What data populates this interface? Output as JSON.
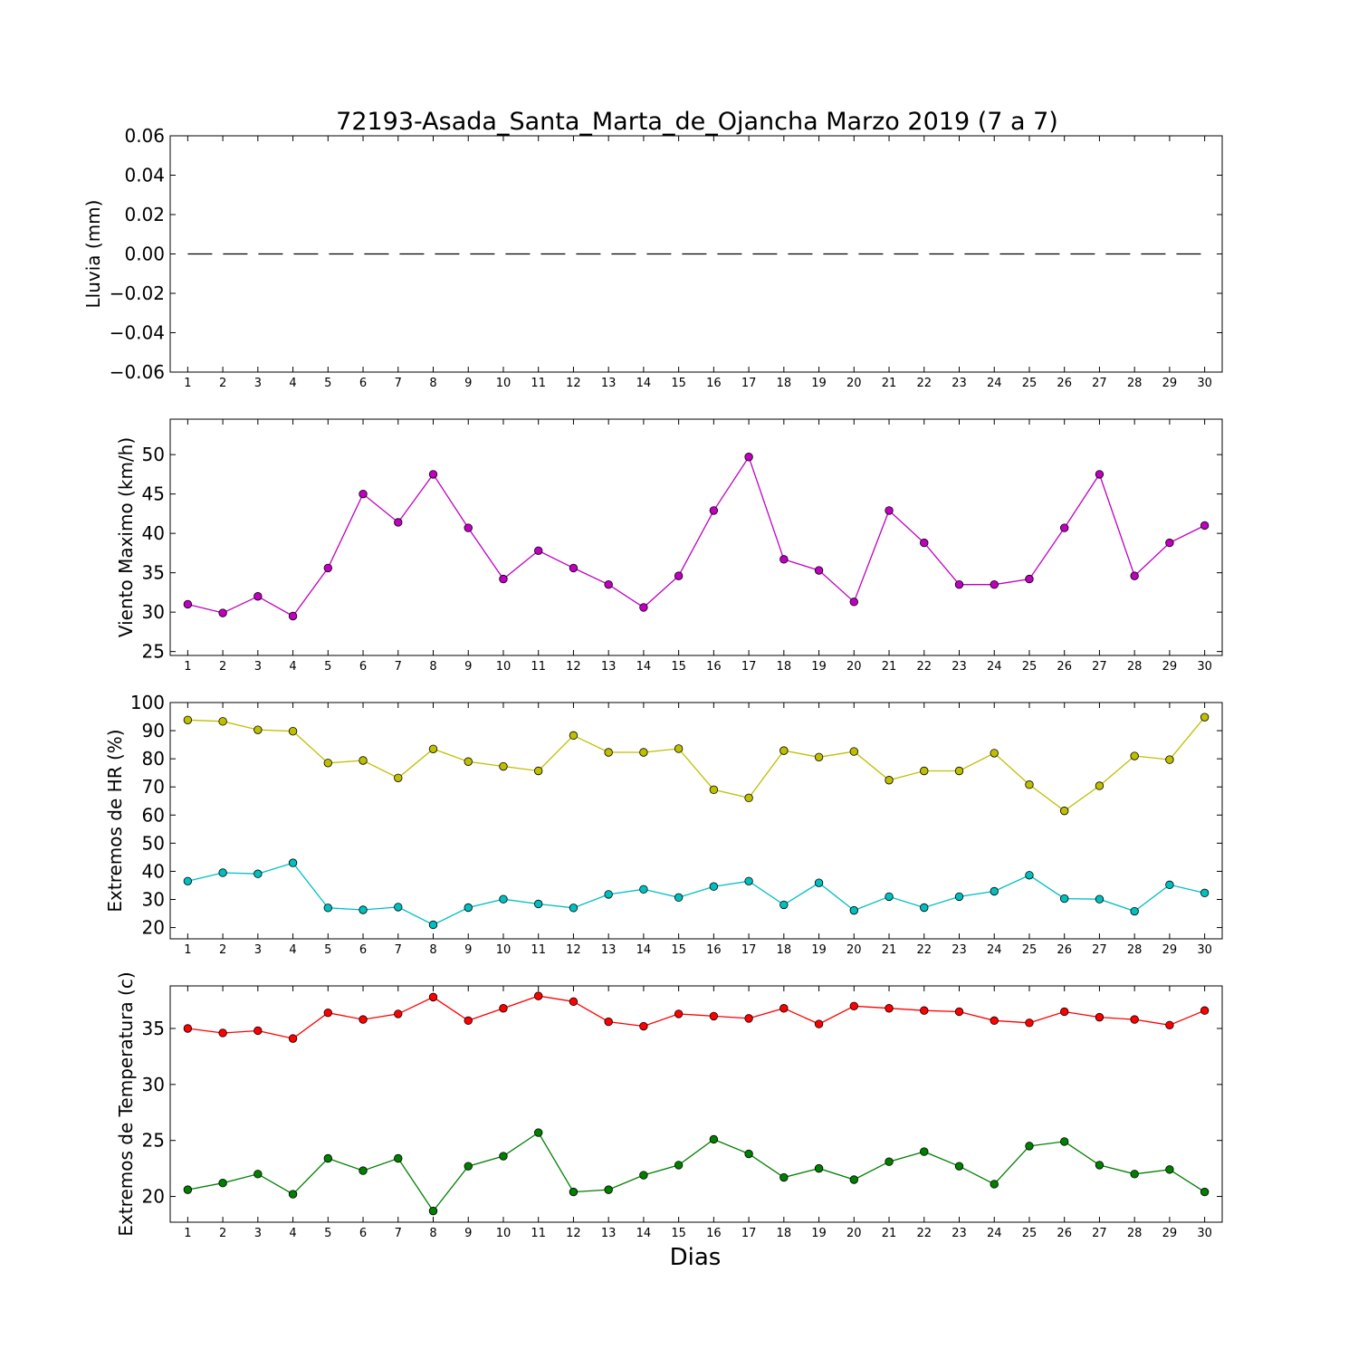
{
  "figure": {
    "title": "72193-Asada_Santa_Marta_de_Ojancha Marzo 2019  (7 a 7)",
    "xlabel": "Dias"
  },
  "chart_data": [
    {
      "type": "line",
      "ylabel": "Lluvia (mm)",
      "x": [
        1,
        2,
        3,
        4,
        5,
        6,
        7,
        8,
        9,
        10,
        11,
        12,
        13,
        14,
        15,
        16,
        17,
        18,
        19,
        20,
        21,
        22,
        23,
        24,
        25,
        26,
        27,
        28,
        29,
        30
      ],
      "xlim": [
        0.5,
        30.5
      ],
      "ylim": [
        -0.06,
        0.06
      ],
      "yticks": [
        -0.06,
        -0.04,
        -0.02,
        0.0,
        0.02,
        0.04,
        0.06
      ],
      "ytick_labels": [
        "−0.06",
        "−0.04",
        "−0.02",
        "0.00",
        "0.02",
        "0.04",
        "0.06"
      ],
      "grid": false,
      "series": [
        {
          "color": "#000000",
          "style": "dashed",
          "marker": "none",
          "values": [
            0,
            0,
            0,
            0,
            0,
            0,
            0,
            0,
            0,
            0,
            0,
            0,
            0,
            0,
            0,
            0,
            0,
            0,
            0,
            0,
            0,
            0,
            0,
            0,
            0,
            0,
            0,
            0,
            0,
            0
          ]
        }
      ]
    },
    {
      "type": "line",
      "ylabel": "Viento Maximo (km/h)",
      "x": [
        1,
        2,
        3,
        4,
        5,
        6,
        7,
        8,
        9,
        10,
        11,
        12,
        13,
        14,
        15,
        16,
        17,
        18,
        19,
        20,
        21,
        22,
        23,
        24,
        25,
        26,
        27,
        28,
        29,
        30
      ],
      "xlim": [
        0.5,
        30.5
      ],
      "ylim": [
        24.5,
        54.5
      ],
      "yticks": [
        25,
        30,
        35,
        40,
        45,
        50
      ],
      "ytick_labels": [
        "25",
        "30",
        "35",
        "40",
        "45",
        "50"
      ],
      "grid": false,
      "series": [
        {
          "color": "#bf00bf",
          "style": "solid",
          "marker": "circle",
          "values": [
            31.0,
            29.9,
            32.0,
            29.5,
            35.6,
            45.0,
            41.4,
            47.5,
            40.7,
            34.2,
            37.8,
            35.6,
            33.5,
            30.6,
            34.6,
            42.9,
            49.7,
            36.7,
            35.3,
            31.3,
            42.9,
            38.8,
            33.5,
            33.5,
            34.2,
            40.7,
            47.5,
            34.6,
            38.8,
            41.0
          ]
        }
      ]
    },
    {
      "type": "line",
      "ylabel": "Extremos de HR (%)",
      "x": [
        1,
        2,
        3,
        4,
        5,
        6,
        7,
        8,
        9,
        10,
        11,
        12,
        13,
        14,
        15,
        16,
        17,
        18,
        19,
        20,
        21,
        22,
        23,
        24,
        25,
        26,
        27,
        28,
        29,
        30
      ],
      "xlim": [
        0.5,
        30.5
      ],
      "ylim": [
        16,
        100
      ],
      "yticks": [
        20,
        30,
        40,
        50,
        60,
        70,
        80,
        90,
        100
      ],
      "ytick_labels": [
        "20",
        "30",
        "40",
        "50",
        "60",
        "70",
        "80",
        "90",
        "100"
      ],
      "grid": false,
      "series": [
        {
          "color": "#bfbf00",
          "style": "solid",
          "marker": "circle",
          "values": [
            93.8,
            93.3,
            90.3,
            89.8,
            78.5,
            79.4,
            73.2,
            83.5,
            79.0,
            77.3,
            75.7,
            88.3,
            82.3,
            82.3,
            83.6,
            69.0,
            66.1,
            82.9,
            80.6,
            82.6,
            72.4,
            75.7,
            75.7,
            82.0,
            70.8,
            61.5,
            70.4,
            81.0,
            79.7,
            94.8
          ]
        },
        {
          "color": "#00bfbf",
          "style": "solid",
          "marker": "circle",
          "values": [
            36.5,
            39.5,
            39.1,
            43.0,
            27.0,
            26.3,
            27.3,
            21.0,
            27.1,
            30.1,
            28.4,
            27.0,
            31.8,
            33.6,
            30.7,
            34.6,
            36.5,
            28.1,
            35.9,
            26.1,
            31.0,
            27.1,
            31.0,
            32.9,
            38.6,
            30.3,
            30.1,
            25.8,
            35.2,
            32.3
          ]
        }
      ]
    },
    {
      "type": "line",
      "ylabel": "Extremos de Temperatura (c)",
      "x": [
        1,
        2,
        3,
        4,
        5,
        6,
        7,
        8,
        9,
        10,
        11,
        12,
        13,
        14,
        15,
        16,
        17,
        18,
        19,
        20,
        21,
        22,
        23,
        24,
        25,
        26,
        27,
        28,
        29,
        30
      ],
      "xlim": [
        0.5,
        30.5
      ],
      "ylim": [
        17.7,
        38.8
      ],
      "yticks": [
        20,
        25,
        30,
        35
      ],
      "ytick_labels": [
        "20",
        "25",
        "30",
        "35"
      ],
      "grid": false,
      "series": [
        {
          "color": "#ff0000",
          "style": "solid",
          "marker": "circle",
          "values": [
            35.0,
            34.6,
            34.8,
            34.1,
            36.4,
            35.8,
            36.3,
            37.8,
            35.7,
            36.8,
            37.9,
            37.4,
            35.6,
            35.2,
            36.3,
            36.1,
            35.9,
            36.8,
            35.4,
            37.0,
            36.8,
            36.6,
            36.5,
            35.7,
            35.5,
            36.5,
            36.0,
            35.8,
            35.3,
            36.6
          ]
        },
        {
          "color": "#007f00",
          "style": "solid",
          "marker": "circle",
          "values": [
            20.6,
            21.2,
            22.0,
            20.2,
            23.4,
            22.3,
            23.4,
            18.7,
            22.7,
            23.6,
            25.7,
            20.4,
            20.6,
            21.9,
            22.8,
            25.1,
            23.8,
            21.7,
            22.5,
            21.5,
            23.1,
            24.0,
            22.7,
            21.1,
            24.5,
            24.9,
            22.8,
            22.0,
            22.4,
            20.4
          ]
        }
      ]
    }
  ]
}
